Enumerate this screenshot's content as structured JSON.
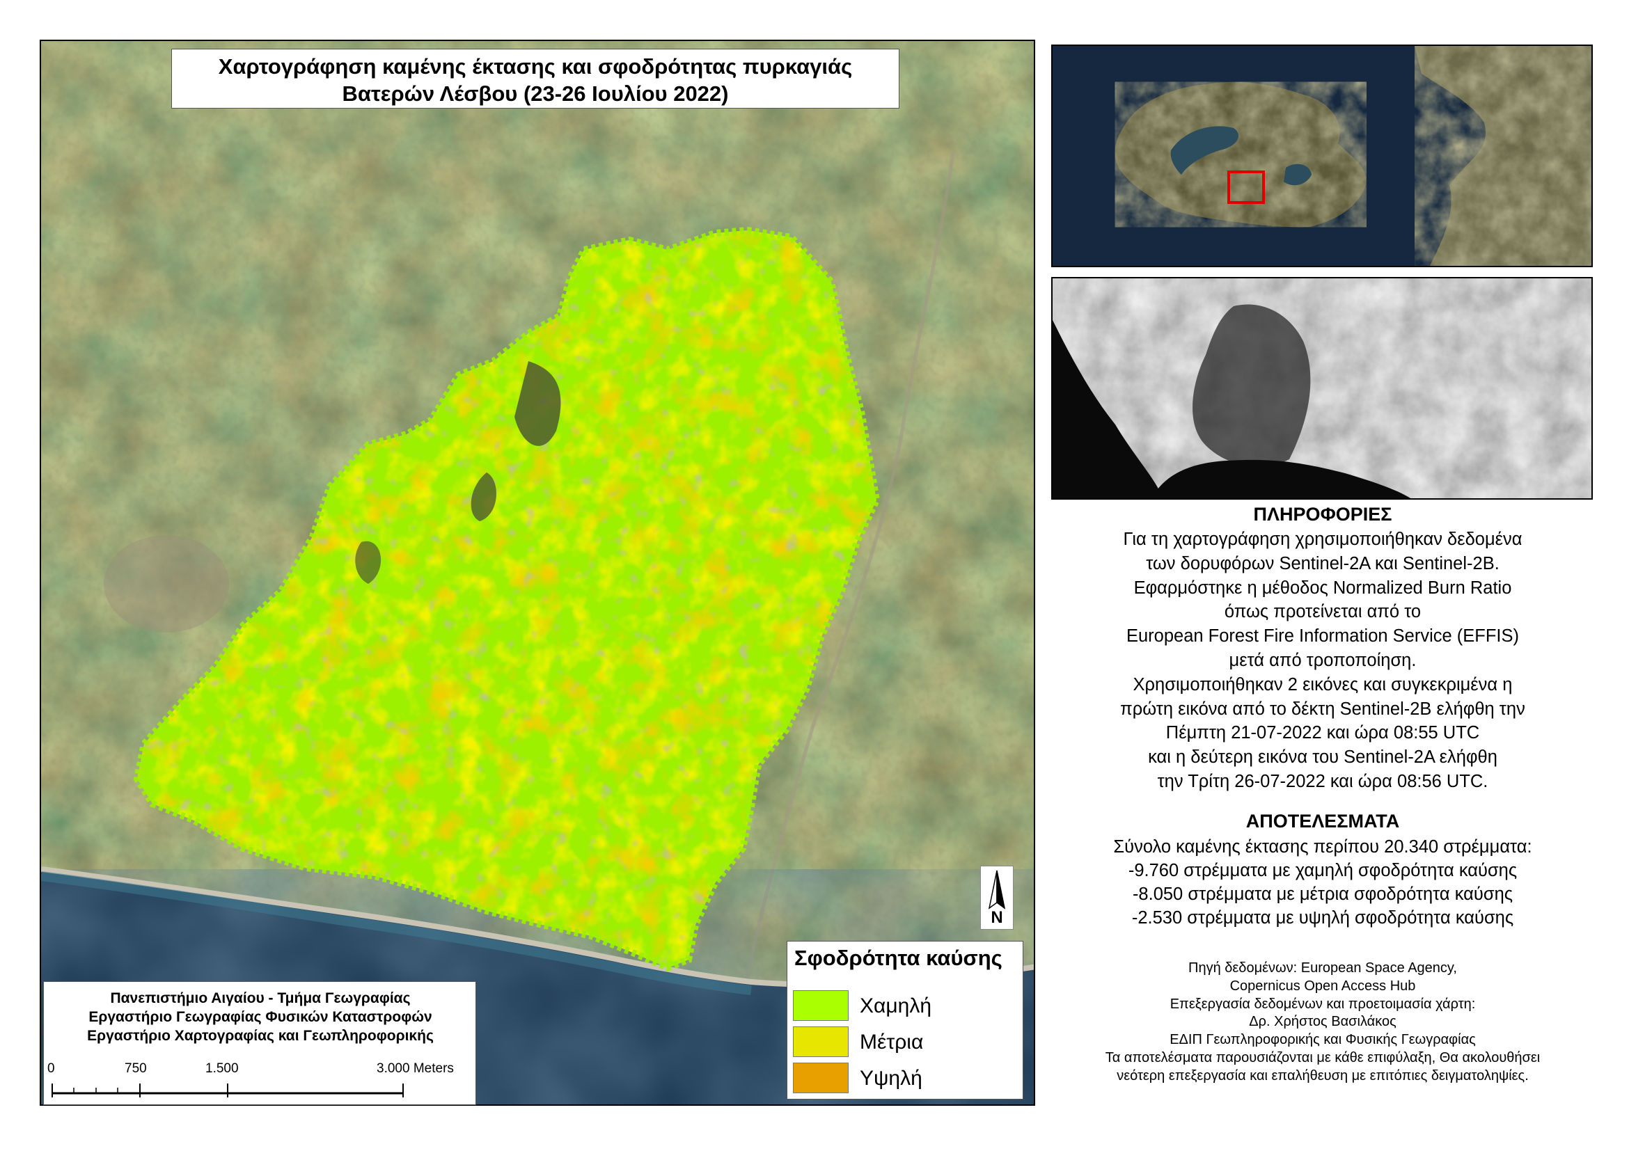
{
  "title": {
    "line1": "Χαρτογράφηση καμένης έκτασης και σφοδρότητας πυρκαγιάς",
    "line2": "Βατερών Λέσβου (23-26 Ιουλίου 2022)"
  },
  "legend": {
    "title": "Σφοδρότητα καύσης",
    "items": [
      {
        "label": "Χαμηλή",
        "color": "#aaff00"
      },
      {
        "label": "Μέτρια",
        "color": "#e6e600"
      },
      {
        "label": "Υψηλή",
        "color": "#e8a000"
      }
    ]
  },
  "credits": {
    "line1": "Πανεπιστήμιο Αιγαίου - Τμήμα Γεωγραφίας",
    "line2": "Εργαστήριο Γεωγραφίας Φυσικών Καταστροφών",
    "line3": "Εργαστήριο Χαρτογραφίας και Γεωπληροφορικής"
  },
  "scalebar": {
    "ticks": [
      "0",
      "750",
      "1.500",
      "3.000 Meters"
    ]
  },
  "north_arrow": {
    "label": "N",
    "icon": "north-arrow-icon"
  },
  "info": {
    "heading": "ΠΛΗΡΟΦΟΡΙΕΣ",
    "lines": [
      "Για τη χαρτογράφηση χρησιμοποιήθηκαν δεδομένα",
      "των δορυφόρων Sentinel-2A και Sentinel-2B.",
      "Εφαρμόστηκε η μέθοδος Normalized Burn Ratio",
      "όπως προτείνεται από το",
      "European Forest Fire Information Service (EFFIS)",
      "μετά από τροποποίηση.",
      "Χρησιμοποιήθηκαν 2 εικόνες και συγκεκριμένα η",
      "πρώτη εικόνα από το δέκτη Sentinel-2B ελήφθη την",
      "Πέμπτη 21-07-2022 και ώρα 08:55 UTC",
      "και η δεύτερη εικόνα του Sentinel-2A ελήφθη",
      "την Τρίτη 26-07-2022 και ώρα 08:56 UTC."
    ]
  },
  "results": {
    "heading": "ΑΠΟΤΕΛΕΣΜΑΤΑ",
    "lines": [
      "Σύνολο καμένης έκτασης περίπου 20.340 στρέμματα:",
      "-9.760 στρέμματα με χαμηλή σφοδρότητα καύσης",
      "-8.050 στρέμματα με μέτρια σφοδρότητα καύσης",
      "-2.530 στρέμματα με υψηλή σφοδρότητα καύσης"
    ]
  },
  "source": {
    "lines": [
      "Πηγή δεδομένων: European Space Agency,",
      "Copernicus Open Access Hub",
      "Επεξεργασία δεδομένων και προετοιμασία χάρτη:",
      "Δρ. Χρήστος Βασιλάκος",
      "ΕΔΙΠ Γεωπληροφορικής και Φυσικής Γεωγραφίας",
      "Τα αποτελέσματα παρουσιάζονται με κάθε επιφύλαξη, Θα ακολουθήσει",
      "νεότερη επεξεργασία και επαλήθευση με επιτόπιες δειγματοληψίες."
    ]
  },
  "colors": {
    "inset_highlight": "#e00000",
    "sea": "#1c3348",
    "land": "#5a5a3c"
  }
}
